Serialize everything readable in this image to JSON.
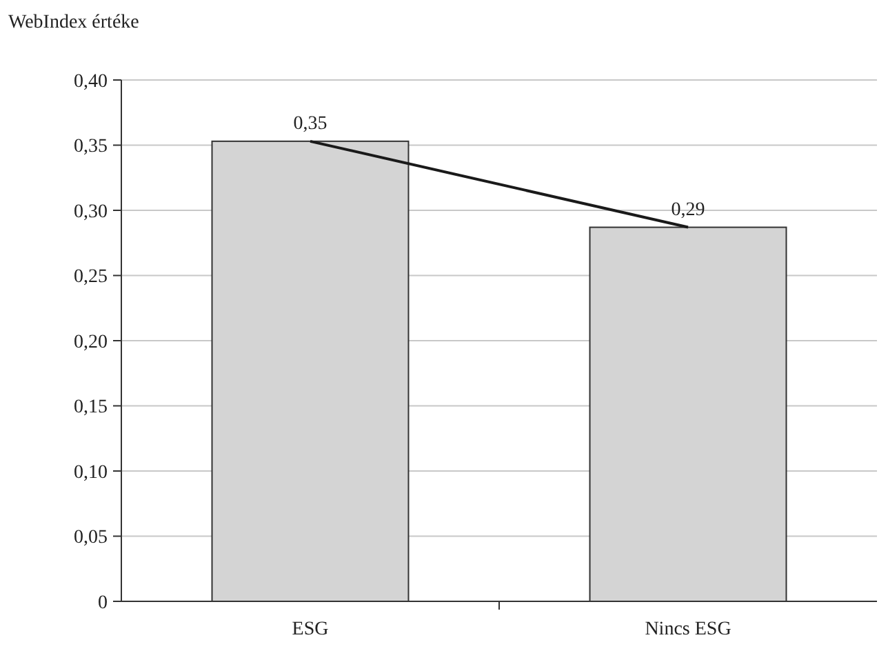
{
  "chart_data": {
    "type": "bar",
    "ylabel": "WebIndex értéke",
    "categories": [
      "ESG",
      "Nincs ESG"
    ],
    "series": [
      {
        "color": "#d4d4d4",
        "values": [
          0.353,
          0.287
        ],
        "value_labels": [
          "0,35",
          "0,29"
        ]
      },
      {
        "type": "line",
        "color": "#1a1a1a",
        "values": [
          0.353,
          0.287
        ]
      }
    ],
    "ylim": [
      0,
      0.4
    ],
    "yticks": [
      0,
      {
        "value": 0.05,
        "label": "0,05"
      },
      {
        "value": 0.1,
        "label": "0,10"
      },
      {
        "value": 0.15,
        "label": "0,15"
      },
      {
        "value": 0.2,
        "label": "0,20"
      },
      {
        "value": 0.25,
        "label": "0,25"
      },
      {
        "value": 0.3,
        "label": "0,30"
      },
      {
        "value": 0.35,
        "label": "0,35"
      },
      {
        "value": 0.4,
        "label": "0,40"
      }
    ],
    "grid": "y",
    "marker": "none",
    "line_style": "solid"
  }
}
